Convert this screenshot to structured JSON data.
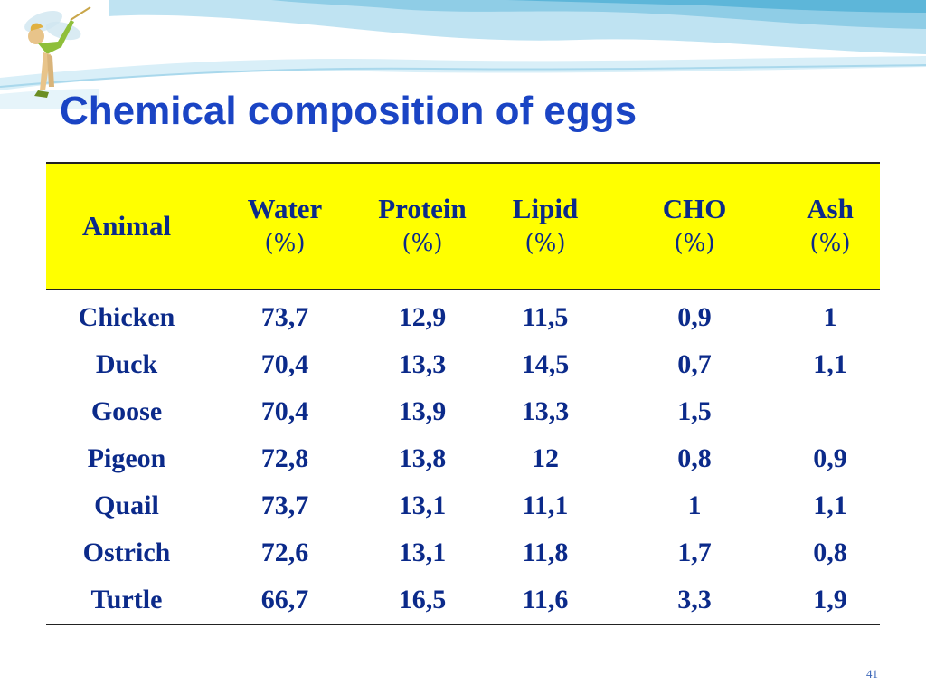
{
  "slide": {
    "title": "Chemical composition of eggs",
    "page_number": "41"
  },
  "table": {
    "headers": [
      {
        "line1": "Animal",
        "line2": ""
      },
      {
        "line1": "Water",
        "line2": "(%)"
      },
      {
        "line1": "Protein",
        "line2": "(%)"
      },
      {
        "line1": "Lipid",
        "line2": "(%)"
      },
      {
        "line1": "CHO",
        "line2": "(%)"
      },
      {
        "line1": "Ash",
        "line2": "(%)"
      }
    ],
    "rows": [
      [
        "Chicken",
        "73,7",
        "12,9",
        "11,5",
        "0,9",
        "1"
      ],
      [
        "Duck",
        "70,4",
        "13,3",
        "14,5",
        "0,7",
        "1,1"
      ],
      [
        "Goose",
        "70,4",
        "13,9",
        "13,3",
        "1,5",
        ""
      ],
      [
        "Pigeon",
        "72,8",
        "13,8",
        "12",
        "0,8",
        "0,9"
      ],
      [
        "Quail",
        "73,7",
        "13,1",
        "11,1",
        "1",
        "1,1"
      ],
      [
        "Ostrich",
        "72,6",
        "13,1",
        "11,8",
        "1,7",
        "0,8"
      ],
      [
        "Turtle",
        "66,7",
        "16,5",
        "11,6",
        "3,3",
        "1,9"
      ]
    ]
  },
  "colors": {
    "title": "#1a44c4",
    "header_background": "#ffff00",
    "table_text": "#0b2a8a"
  }
}
